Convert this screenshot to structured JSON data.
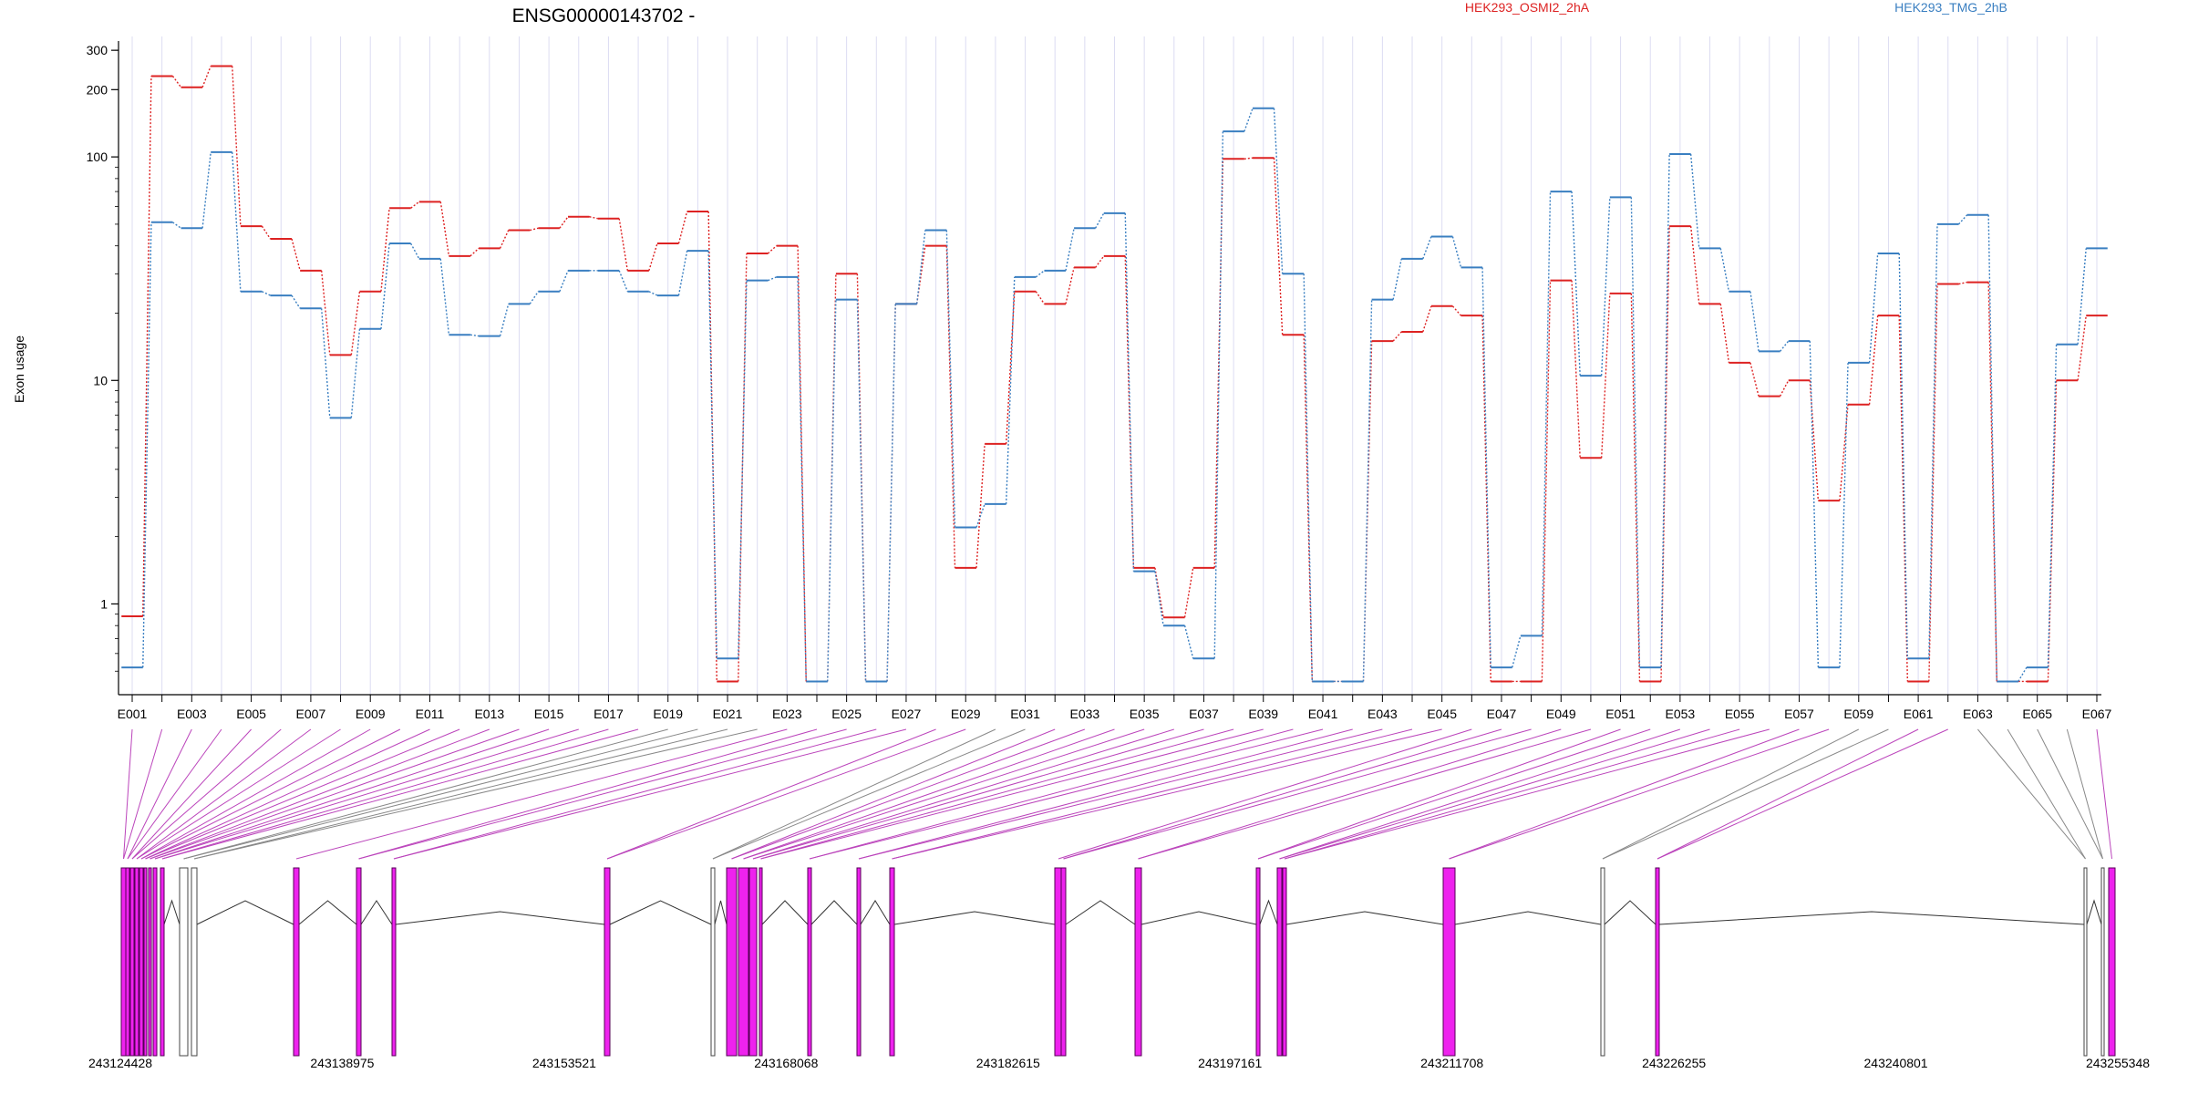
{
  "chart_data": {
    "type": "line",
    "title": "ENSG00000143702 -",
    "ylabel": "Exon usage",
    "xlabel": "",
    "y_scale": "log",
    "ylim": [
      0.4,
      330
    ],
    "y_ticks": [
      1,
      10,
      100,
      200,
      300
    ],
    "x_tick_labels": [
      "E001",
      "E003",
      "E005",
      "E007",
      "E009",
      "E011",
      "E013",
      "E015",
      "E017",
      "E019",
      "E021",
      "E023",
      "E025",
      "E027",
      "E029",
      "E031",
      "E033",
      "E035",
      "E037",
      "E039",
      "E041",
      "E043",
      "E045",
      "E047",
      "E049",
      "E051",
      "E053",
      "E055",
      "E057",
      "E059",
      "E061",
      "E063",
      "E065",
      "E067"
    ],
    "grid": "vertical",
    "legend_placement": "top",
    "categories": [
      "E001",
      "E002",
      "E003",
      "E004",
      "E005",
      "E006",
      "E007",
      "E008",
      "E009",
      "E010",
      "E011",
      "E012",
      "E013",
      "E014",
      "E015",
      "E016",
      "E017",
      "E018",
      "E019",
      "E020",
      "E021",
      "E022",
      "E023",
      "E024",
      "E025",
      "E026",
      "E027",
      "E028",
      "E029",
      "E030",
      "E031",
      "E032",
      "E033",
      "E034",
      "E035",
      "E036",
      "E037",
      "E038",
      "E039",
      "E040",
      "E041",
      "E042",
      "E043",
      "E044",
      "E045",
      "E046",
      "E047",
      "E048",
      "E049",
      "E050",
      "E051",
      "E052",
      "E053",
      "E054",
      "E055",
      "E056",
      "E057",
      "E058",
      "E059",
      "E060",
      "E061",
      "E062",
      "E063",
      "E064",
      "E065",
      "E066",
      "E067"
    ],
    "series": [
      {
        "name": "HEK293_OSMI2_2hA",
        "color": "#dd2222",
        "values": [
          0.88,
          230,
          205,
          255,
          49,
          43,
          31,
          13,
          25,
          59,
          63,
          36,
          39,
          47,
          48,
          54,
          53,
          31,
          41,
          57,
          0.45,
          37,
          40,
          0.45,
          30,
          0.45,
          22,
          40,
          1.45,
          5.2,
          25,
          22,
          32,
          36,
          1.45,
          0.87,
          1.45,
          98,
          99,
          16,
          0.45,
          0.45,
          15,
          16.5,
          21.5,
          19.5,
          0.45,
          0.45,
          28,
          4.5,
          24.5,
          0.45,
          49,
          22,
          12,
          8.5,
          10,
          2.9,
          7.8,
          19.5,
          0.45,
          27,
          27.5,
          0.45,
          0.45,
          10,
          19.5
        ]
      },
      {
        "name": "HEK293_TMG_2hB",
        "color": "#3a7fc1",
        "values": [
          0.52,
          51,
          48,
          105,
          25,
          24,
          21,
          6.8,
          17,
          41,
          35,
          16,
          15.8,
          22,
          25,
          31,
          31,
          25,
          24,
          38,
          0.57,
          28,
          29,
          0.45,
          23,
          0.45,
          22,
          47,
          2.2,
          2.8,
          29,
          31,
          48,
          56,
          1.4,
          0.8,
          0.57,
          130,
          165,
          30,
          0.45,
          0.45,
          23,
          35,
          44,
          32,
          0.52,
          0.72,
          70,
          10.5,
          66,
          0.52,
          103,
          39,
          25,
          13.5,
          15,
          0.52,
          12,
          37,
          0.57,
          50,
          55,
          0.45,
          0.52,
          14.5,
          39
        ]
      }
    ],
    "gene_model": {
      "coordinate_labels": [
        "243124428",
        "243138975",
        "243153521",
        "243168068",
        "243182615",
        "243197161",
        "243211708",
        "243226255",
        "243240801",
        "243255348"
      ]
    }
  }
}
